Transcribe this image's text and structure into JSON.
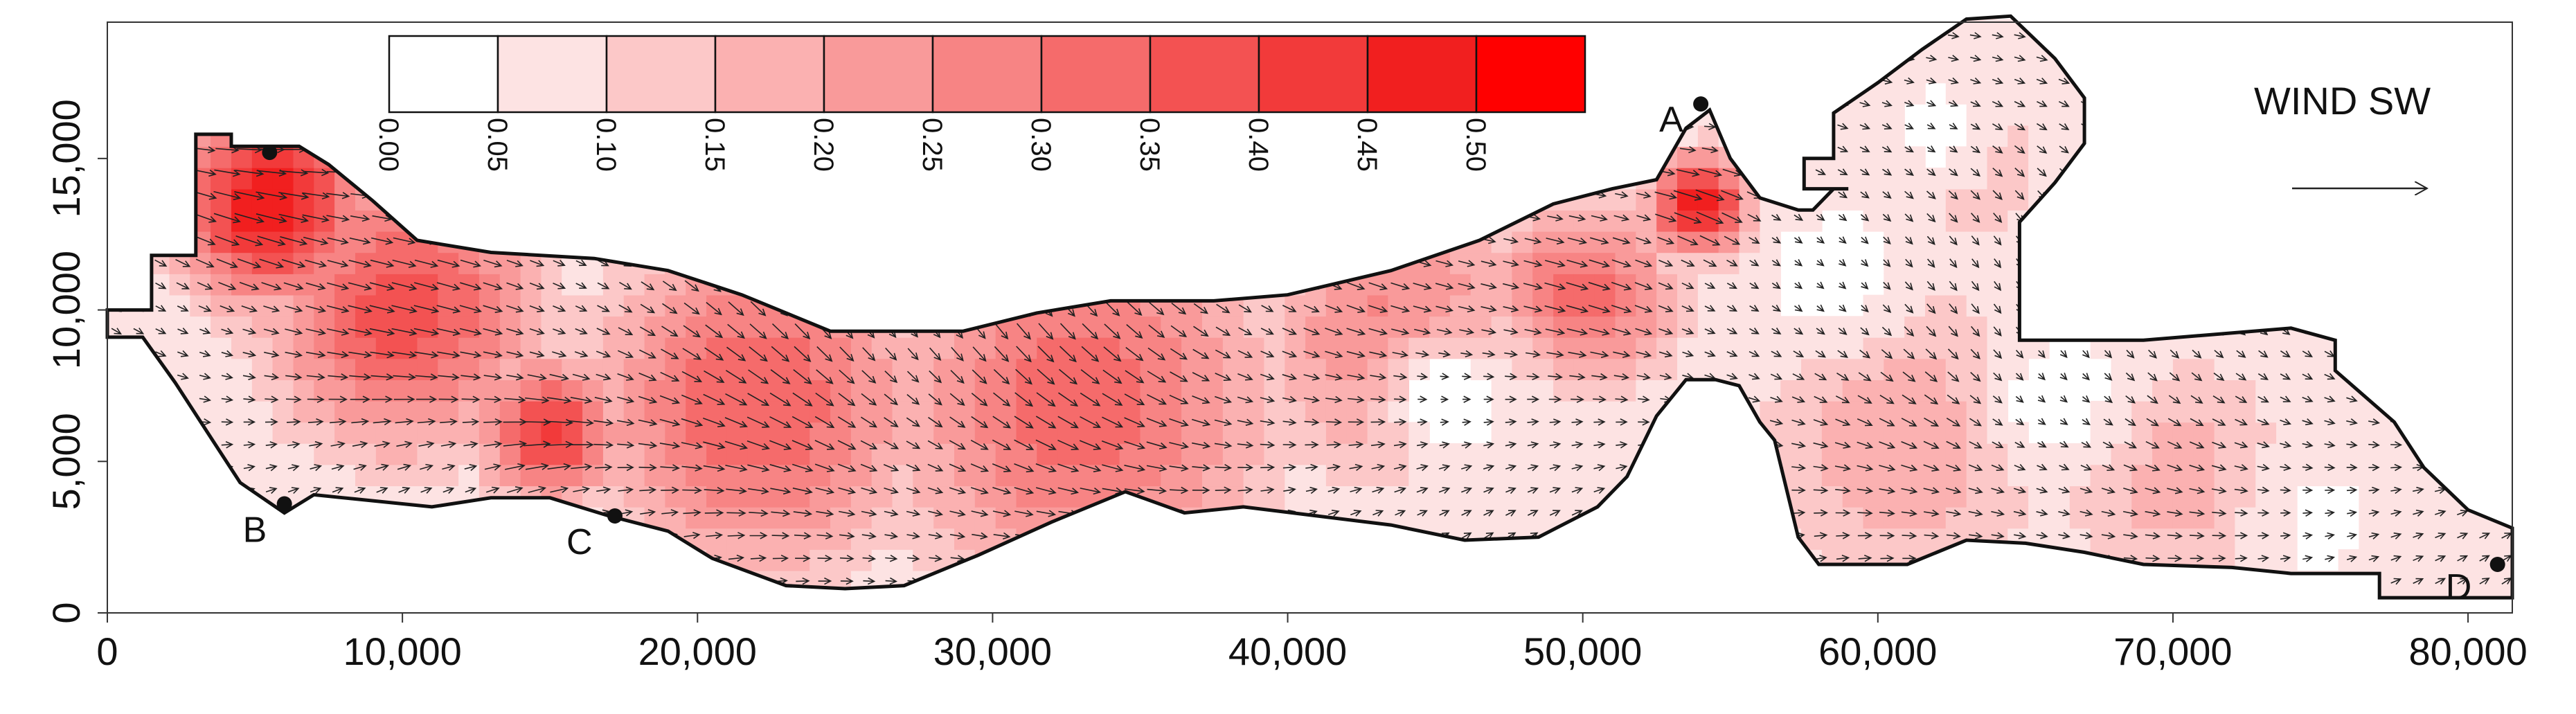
{
  "chart_data": {
    "type": "heatmap",
    "title": "",
    "xlabel": "",
    "ylabel": "",
    "xlim": [
      0,
      81500
    ],
    "ylim": [
      0,
      19500
    ],
    "x_ticks": [
      0,
      10000,
      20000,
      30000,
      40000,
      50000,
      60000,
      70000,
      80000
    ],
    "x_tick_labels": [
      "0",
      "10,000",
      "20,000",
      "30,000",
      "40,000",
      "50,000",
      "60,000",
      "70,000",
      "80,000"
    ],
    "y_ticks": [
      0,
      5000,
      10000,
      15000
    ],
    "y_tick_labels": [
      "0",
      "5,000",
      "10,000",
      "15,000"
    ],
    "grid": false,
    "colorbar": {
      "placement": "top-left",
      "levels": [
        0.0,
        0.05,
        0.1,
        0.15,
        0.2,
        0.25,
        0.3,
        0.35,
        0.4,
        0.45,
        0.5
      ],
      "level_labels": [
        "0.00",
        "0.05",
        "0.10",
        "0.15",
        "0.20",
        "0.25",
        "0.30",
        "0.35",
        "0.40",
        "0.45",
        "0.50"
      ],
      "colors": [
        "#ffffff",
        "#fde3e3",
        "#fcc8c8",
        "#fbb1b1",
        "#f99a9a",
        "#f78484",
        "#f56b6b",
        "#f35252",
        "#f23a3a",
        "#f11f1f",
        "#ff0000"
      ]
    },
    "wind": {
      "label": "WIND SW"
    },
    "stations": [
      {
        "label": "A",
        "x": 54000,
        "y": 16800
      },
      {
        "label": "B",
        "x": 6000,
        "y": 3600
      },
      {
        "label": "C",
        "x": 17200,
        "y": 3200
      },
      {
        "label": "D",
        "x": 81000,
        "y": 1600
      },
      {
        "label": "",
        "x": 5500,
        "y": 15200
      }
    ],
    "domain_outline": [
      [
        0,
        10000
      ],
      [
        1500,
        10000
      ],
      [
        1500,
        11800
      ],
      [
        3000,
        11800
      ],
      [
        3000,
        15800
      ],
      [
        4200,
        15800
      ],
      [
        4200,
        15400
      ],
      [
        6500,
        15400
      ],
      [
        7500,
        14800
      ],
      [
        9000,
        13600
      ],
      [
        10500,
        12300
      ],
      [
        13000,
        11900
      ],
      [
        16500,
        11700
      ],
      [
        19000,
        11300
      ],
      [
        21500,
        10500
      ],
      [
        24500,
        9300
      ],
      [
        29000,
        9300
      ],
      [
        31500,
        9900
      ],
      [
        34000,
        10300
      ],
      [
        37500,
        10300
      ],
      [
        40000,
        10500
      ],
      [
        43500,
        11300
      ],
      [
        46500,
        12300
      ],
      [
        49000,
        13500
      ],
      [
        51000,
        14000
      ],
      [
        52500,
        14300
      ],
      [
        53500,
        16000
      ],
      [
        54300,
        16600
      ],
      [
        55000,
        15000
      ],
      [
        56000,
        13700
      ],
      [
        57300,
        13300
      ],
      [
        57800,
        13300
      ],
      [
        58500,
        14000
      ],
      [
        59000,
        14000
      ],
      [
        57500,
        14000
      ],
      [
        57500,
        15000
      ],
      [
        58500,
        15000
      ],
      [
        58500,
        16500
      ],
      [
        60000,
        17500
      ],
      [
        61500,
        18600
      ],
      [
        63000,
        19600
      ],
      [
        64500,
        19700
      ],
      [
        66000,
        18300
      ],
      [
        67000,
        17000
      ],
      [
        67000,
        15500
      ],
      [
        66000,
        14200
      ],
      [
        64800,
        12900
      ],
      [
        64800,
        9000
      ],
      [
        69000,
        9000
      ],
      [
        74000,
        9400
      ],
      [
        75500,
        9000
      ],
      [
        75500,
        8000
      ],
      [
        77500,
        6300
      ],
      [
        78500,
        4800
      ],
      [
        80000,
        3400
      ],
      [
        81500,
        2800
      ],
      [
        81500,
        500
      ],
      [
        77000,
        500
      ],
      [
        77000,
        1300
      ],
      [
        74000,
        1300
      ],
      [
        72000,
        1500
      ],
      [
        69000,
        1600
      ],
      [
        67000,
        2000
      ],
      [
        65000,
        2300
      ],
      [
        63000,
        2400
      ],
      [
        61000,
        1600
      ],
      [
        58000,
        1600
      ],
      [
        57300,
        2500
      ],
      [
        56500,
        5700
      ],
      [
        56000,
        6300
      ],
      [
        55300,
        7500
      ],
      [
        54500,
        7700
      ],
      [
        53500,
        7700
      ],
      [
        52500,
        6500
      ],
      [
        51500,
        4500
      ],
      [
        50500,
        3500
      ],
      [
        48500,
        2500
      ],
      [
        46000,
        2400
      ],
      [
        43500,
        2900
      ],
      [
        41000,
        3200
      ],
      [
        38500,
        3500
      ],
      [
        36500,
        3300
      ],
      [
        34500,
        4000
      ],
      [
        32000,
        3000
      ],
      [
        29500,
        1900
      ],
      [
        27000,
        900
      ],
      [
        25000,
        800
      ],
      [
        23000,
        900
      ],
      [
        20500,
        1800
      ],
      [
        19000,
        2700
      ],
      [
        17000,
        3200
      ],
      [
        15000,
        3800
      ],
      [
        13000,
        3800
      ],
      [
        11000,
        3500
      ],
      [
        8000,
        3800
      ],
      [
        7000,
        3900
      ],
      [
        6000,
        3300
      ],
      [
        4500,
        4300
      ],
      [
        3500,
        5800
      ],
      [
        2300,
        7600
      ],
      [
        1200,
        9100
      ],
      [
        0,
        9100
      ]
    ],
    "field_hotspots": [
      {
        "x": 5500,
        "y": 13500,
        "value": 0.5,
        "spread": 3500
      },
      {
        "x": 10000,
        "y": 10000,
        "value": 0.38,
        "spread": 5000
      },
      {
        "x": 15000,
        "y": 6000,
        "value": 0.42,
        "spread": 2500
      },
      {
        "x": 22000,
        "y": 7000,
        "value": 0.35,
        "spread": 6000
      },
      {
        "x": 33000,
        "y": 7000,
        "value": 0.33,
        "spread": 7000
      },
      {
        "x": 44000,
        "y": 9000,
        "value": 0.3,
        "spread": 5000
      },
      {
        "x": 54000,
        "y": 13500,
        "value": 0.5,
        "spread": 1800
      },
      {
        "x": 50000,
        "y": 10500,
        "value": 0.32,
        "spread": 3500
      },
      {
        "x": 61000,
        "y": 6000,
        "value": 0.2,
        "spread": 6000
      },
      {
        "x": 70000,
        "y": 4500,
        "value": 0.18,
        "spread": 5000
      },
      {
        "x": 63000,
        "y": 15000,
        "value": 0.15,
        "spread": 4000
      }
    ],
    "field_lows": [
      {
        "x": 45500,
        "y": 7000,
        "value": 0.0,
        "spread": 2500
      },
      {
        "x": 58500,
        "y": 11000,
        "value": 0.02,
        "spread": 2500
      },
      {
        "x": 62000,
        "y": 16000,
        "value": 0.03,
        "spread": 2200
      },
      {
        "x": 66000,
        "y": 7000,
        "value": 0.02,
        "spread": 2500
      },
      {
        "x": 75000,
        "y": 3000,
        "value": 0.04,
        "spread": 2500
      }
    ]
  }
}
